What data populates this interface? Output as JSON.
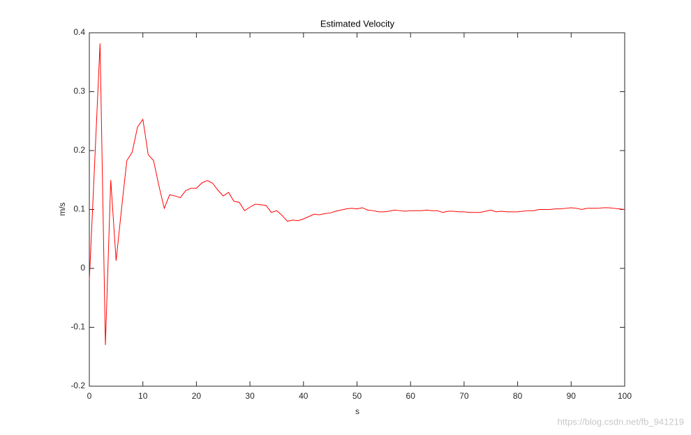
{
  "chart_data": {
    "type": "line",
    "title": "Estimated Velocity",
    "x_label": "s",
    "y_label": "m/s",
    "watermark": "https://blog.csdn.net/fb_941219",
    "color": "#ff0000",
    "x": [
      0,
      1,
      2,
      3,
      4,
      5,
      6,
      7,
      8,
      9,
      10,
      11,
      12,
      13,
      14,
      15,
      16,
      17,
      18,
      19,
      20,
      21,
      22,
      23,
      24,
      25,
      26,
      27,
      28,
      29,
      30,
      31,
      32,
      33,
      34,
      35,
      36,
      37,
      38,
      39,
      40,
      41,
      42,
      43,
      44,
      45,
      46,
      47,
      48,
      49,
      50,
      51,
      52,
      53,
      54,
      55,
      56,
      57,
      58,
      59,
      60,
      61,
      62,
      63,
      64,
      65,
      66,
      67,
      68,
      69,
      70,
      71,
      72,
      73,
      74,
      75,
      76,
      77,
      78,
      79,
      80,
      81,
      82,
      83,
      84,
      85,
      86,
      87,
      88,
      89,
      90,
      91,
      92,
      93,
      94,
      95,
      96,
      97,
      98,
      99,
      100
    ],
    "values": [
      -0.02,
      0.18,
      0.382,
      -0.13,
      0.15,
      0.013,
      0.1,
      0.183,
      0.197,
      0.24,
      0.253,
      0.193,
      0.183,
      0.14,
      0.102,
      0.125,
      0.123,
      0.12,
      0.132,
      0.136,
      0.136,
      0.145,
      0.149,
      0.145,
      0.133,
      0.123,
      0.129,
      0.114,
      0.112,
      0.098,
      0.104,
      0.109,
      0.108,
      0.107,
      0.095,
      0.098,
      0.09,
      0.08,
      0.082,
      0.081,
      0.084,
      0.088,
      0.092,
      0.091,
      0.093,
      0.094,
      0.097,
      0.099,
      0.101,
      0.102,
      0.101,
      0.103,
      0.099,
      0.098,
      0.096,
      0.096,
      0.097,
      0.099,
      0.098,
      0.097,
      0.098,
      0.098,
      0.098,
      0.099,
      0.098,
      0.098,
      0.095,
      0.097,
      0.097,
      0.096,
      0.096,
      0.095,
      0.095,
      0.095,
      0.097,
      0.099,
      0.096,
      0.097,
      0.096,
      0.096,
      0.096,
      0.097,
      0.098,
      0.098,
      0.1,
      0.1,
      0.1,
      0.101,
      0.101,
      0.102,
      0.103,
      0.102,
      0.1,
      0.102,
      0.102,
      0.102,
      0.103,
      0.103,
      0.102,
      0.101,
      0.1
    ],
    "xlim": [
      0,
      100
    ],
    "ylim": [
      -0.2,
      0.4
    ],
    "xticks": [
      0,
      10,
      20,
      30,
      40,
      50,
      60,
      70,
      80,
      90,
      100
    ],
    "yticks": [
      -0.2,
      -0.1,
      0,
      0.1,
      0.2,
      0.3,
      0.4
    ],
    "grid": false
  }
}
